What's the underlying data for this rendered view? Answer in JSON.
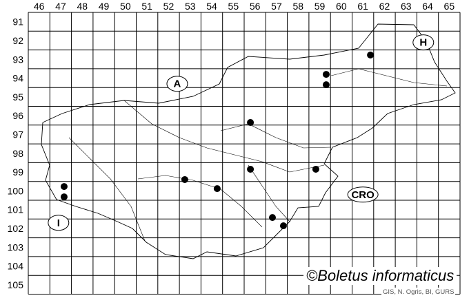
{
  "grid": {
    "columns": [
      "46",
      "47",
      "48",
      "49",
      "50",
      "51",
      "52",
      "53",
      "54",
      "55",
      "56",
      "57",
      "58",
      "59",
      "60",
      "61",
      "62",
      "63",
      "64",
      "65"
    ],
    "rows": [
      "91",
      "92",
      "93",
      "94",
      "95",
      "96",
      "97",
      "98",
      "99",
      "100",
      "101",
      "102",
      "103",
      "104",
      "105"
    ]
  },
  "country_labels": [
    {
      "text": "A",
      "col": 52.9,
      "row": 94.8
    },
    {
      "text": "H",
      "col": 64.3,
      "row": 92.6
    },
    {
      "text": "CRO",
      "col": 61.5,
      "row": 100.7
    },
    {
      "text": "I",
      "col": 47.4,
      "row": 102.2
    }
  ],
  "records": [
    {
      "col": 61.85,
      "row": 93.27
    },
    {
      "col": 59.8,
      "row": 94.3
    },
    {
      "col": 59.8,
      "row": 94.85
    },
    {
      "col": 56.29,
      "row": 96.86
    },
    {
      "col": 56.29,
      "row": 99.35
    },
    {
      "col": 59.32,
      "row": 99.35
    },
    {
      "col": 53.25,
      "row": 99.9
    },
    {
      "col": 54.75,
      "row": 100.38
    },
    {
      "col": 47.66,
      "row": 100.27
    },
    {
      "col": 47.66,
      "row": 100.82
    },
    {
      "col": 57.31,
      "row": 101.92
    },
    {
      "col": 57.82,
      "row": 102.36
    }
  ],
  "record_color": "#000000",
  "copyright": "©Boletus informaticus",
  "credits": "GIS, N. Ogris, BI, GURS"
}
